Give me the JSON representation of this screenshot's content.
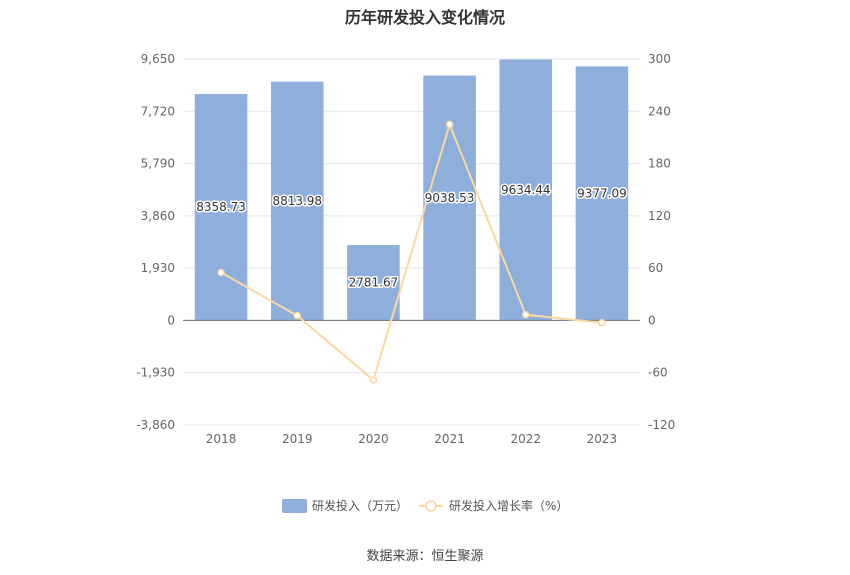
{
  "chart_data": {
    "type": "bar",
    "title": "历年研发投入变化情况",
    "categories": [
      "2018",
      "2019",
      "2020",
      "2021",
      "2022",
      "2023"
    ],
    "series": [
      {
        "name": "研发投入（万元）",
        "type": "bar",
        "axis": "left",
        "color": "#8eaedb",
        "values": [
          8358.73,
          8813.98,
          2781.67,
          9038.53,
          9634.44,
          9377.09
        ],
        "labels": [
          "8358.73",
          "8813.98",
          "2781.67",
          "9038.53",
          "9634.44",
          "9377.09"
        ]
      },
      {
        "name": "研发投入增长率（%）",
        "type": "line",
        "axis": "right",
        "color": "#fbd9a0",
        "values": [
          55,
          5.45,
          -68.44,
          224.93,
          6.59,
          -2.67
        ]
      }
    ],
    "y_left": {
      "ticks": [
        9650,
        7720,
        5790,
        3860,
        1930,
        0,
        -1930,
        -3860
      ],
      "tick_labels": [
        "9,650",
        "7,720",
        "5,790",
        "3,860",
        "1,930",
        "0",
        "-1,930",
        "-3,860"
      ],
      "ylim": [
        -3860,
        9650
      ]
    },
    "y_right": {
      "ticks": [
        300,
        240,
        180,
        120,
        60,
        0,
        -60,
        -120
      ],
      "tick_labels": [
        "300",
        "240",
        "180",
        "120",
        "60",
        "0",
        "-60",
        "-120"
      ],
      "ylim": [
        -120,
        300
      ]
    },
    "grid": true,
    "legend_position": "bottom-center",
    "source": "数据来源：恒生聚源"
  }
}
